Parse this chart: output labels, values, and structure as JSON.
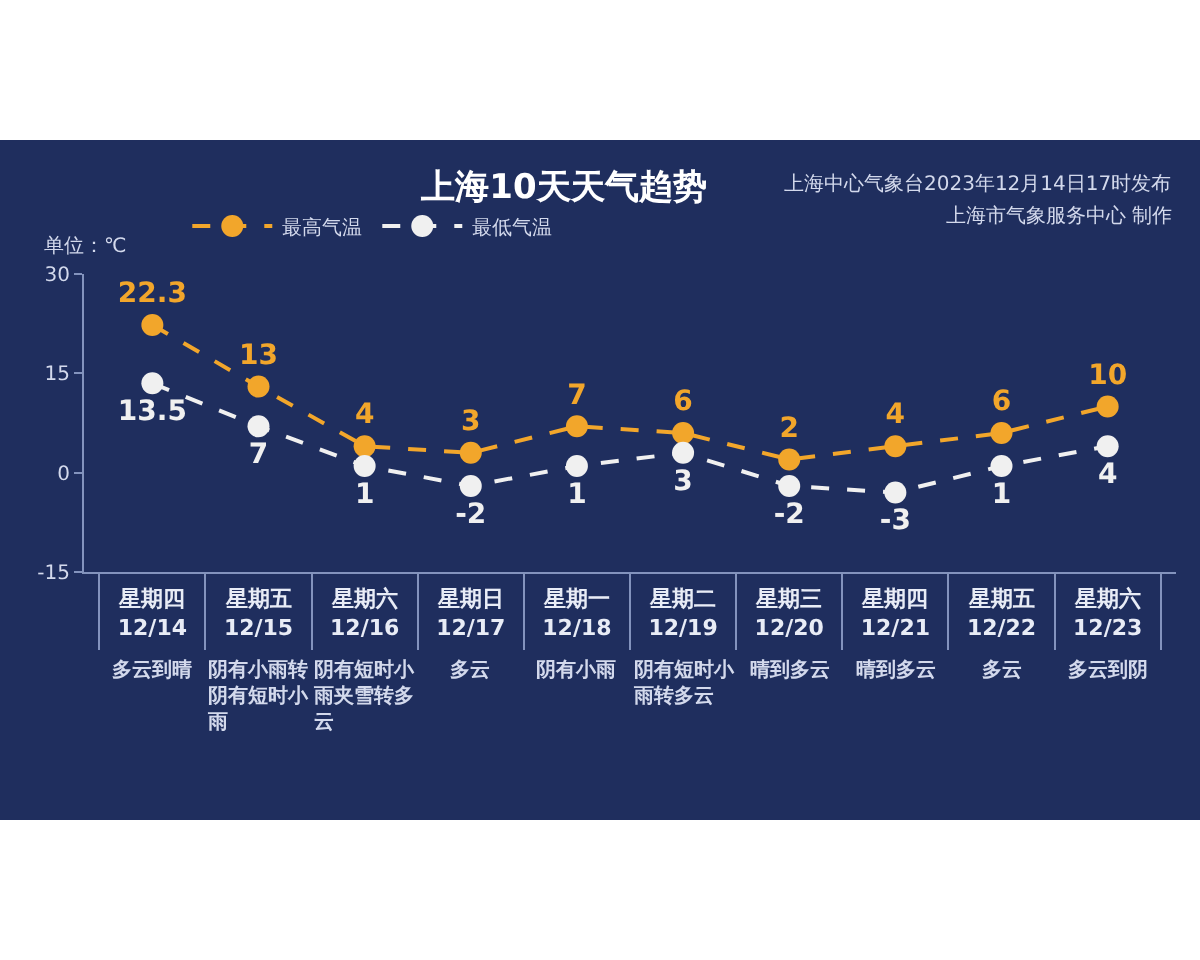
{
  "chart_data": {
    "type": "line",
    "title": "上海10天天气趋势",
    "ylabel": "单位：℃",
    "annotations": [
      "上海中心气象台2023年12月14日17时发布",
      "上海市气象服务中心 制作",
      "多云到晴",
      "阴有小雨转阴有短时小雨",
      "阴有短时小雨夹雪转多云",
      "多云",
      "阴有小雨",
      "阴有短时小雨转多云",
      "晴到多云",
      "晴到多云",
      "多云",
      "多云到阴"
    ],
    "categories": [
      "星期四\n12/14",
      "星期五\n12/15",
      "星期六\n12/16",
      "星期日\n12/17",
      "星期一\n12/18",
      "星期二\n12/19",
      "星期三\n12/20",
      "星期四\n12/21",
      "星期五\n12/22",
      "星期六\n12/23"
    ],
    "series": [
      {
        "name": "最高气温",
        "color": "#f2a62b",
        "values": [
          22.3,
          13,
          4,
          3,
          7,
          6,
          2,
          4,
          6,
          10
        ]
      },
      {
        "name": "最低气温",
        "color": "#f0f0f0",
        "values": [
          13.5,
          7,
          1,
          -2,
          1,
          3,
          -2,
          -3,
          1,
          4
        ]
      }
    ],
    "ylim": [
      -15,
      30
    ],
    "yticks": [
      -15,
      0,
      15,
      30
    ],
    "legend": "top left",
    "marker": "circle",
    "line_style": "dashed",
    "data_labels": true
  }
}
